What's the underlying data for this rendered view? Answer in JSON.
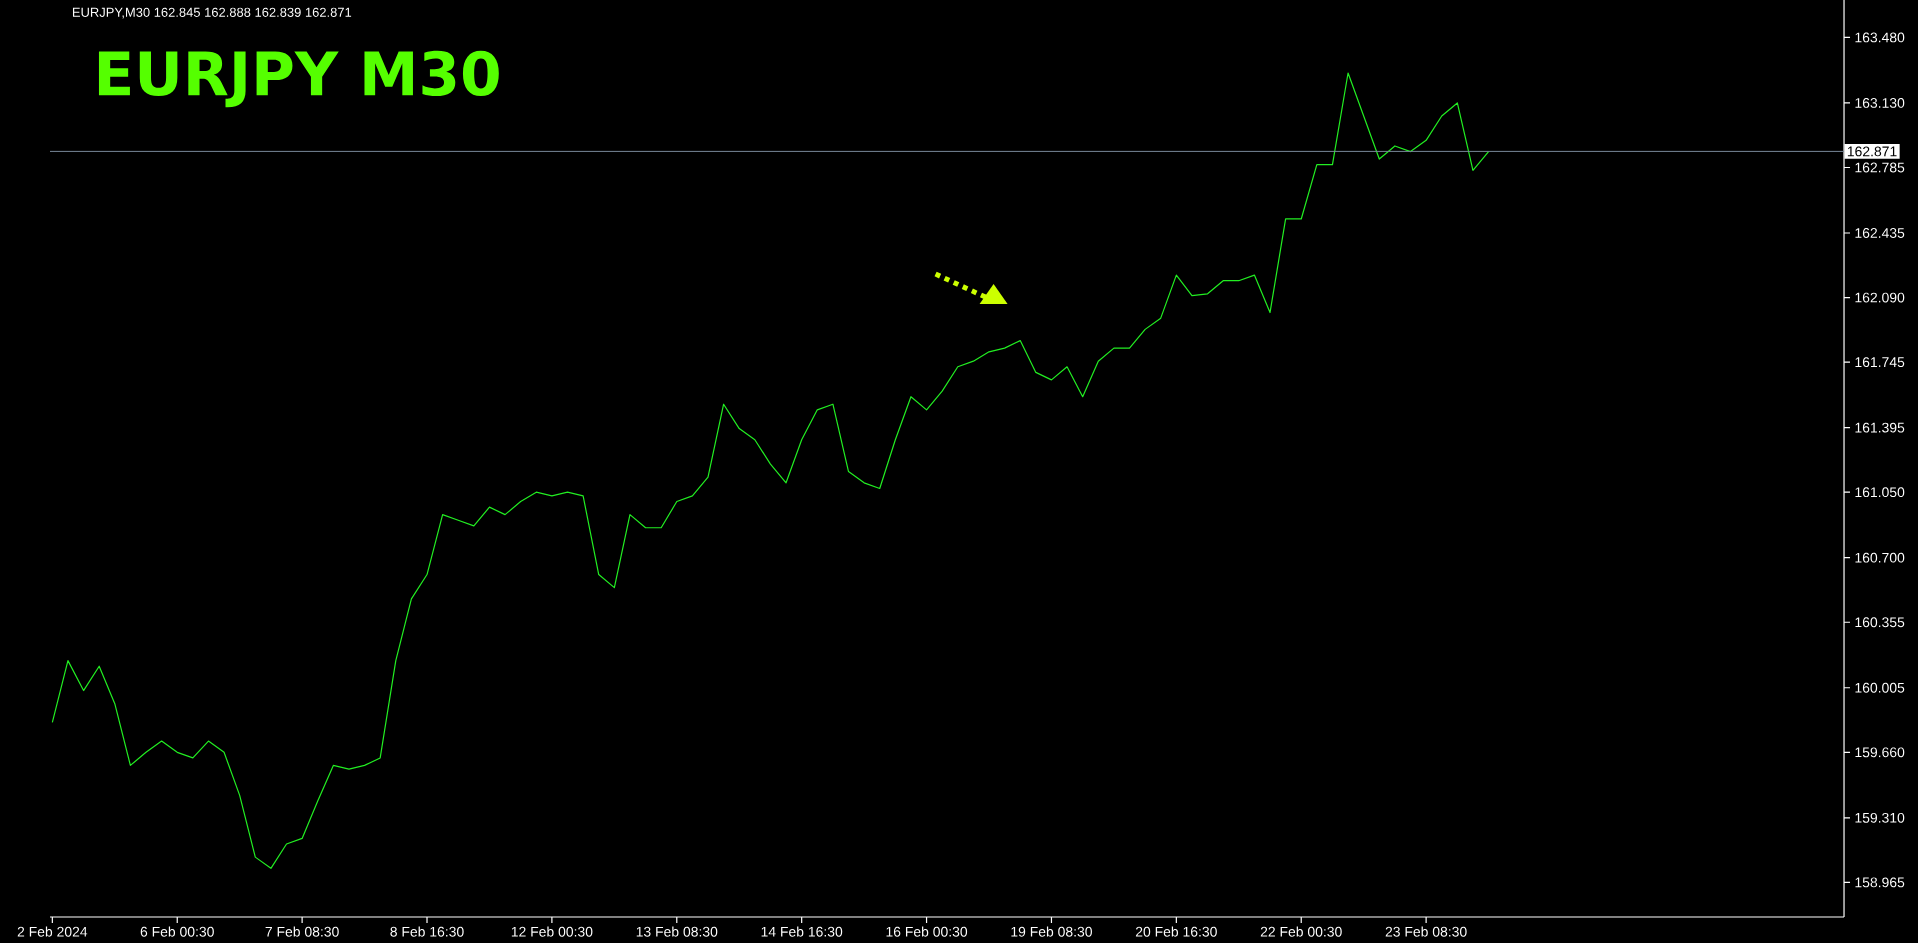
{
  "chart_data": {
    "type": "line",
    "title": "EURJPY  M30",
    "annotations": [
      "EURJPY,M30  162.845 162.888 162.839 162.871"
    ],
    "categories": [
      "2 Feb 2024",
      null,
      null,
      null,
      null,
      null,
      null,
      null,
      "6 Feb 00:30",
      null,
      null,
      null,
      null,
      null,
      null,
      null,
      "7 Feb 08:30",
      null,
      null,
      null,
      null,
      null,
      null,
      null,
      "8 Feb 16:30",
      null,
      null,
      null,
      null,
      null,
      null,
      null,
      "12 Feb 00:30",
      null,
      null,
      null,
      null,
      null,
      null,
      null,
      "13 Feb 08:30",
      null,
      null,
      null,
      null,
      null,
      null,
      null,
      "14 Feb 16:30",
      null,
      null,
      null,
      null,
      null,
      null,
      null,
      "16 Feb 00:30",
      null,
      null,
      null,
      null,
      null,
      null,
      null,
      "19 Feb 08:30",
      null,
      null,
      null,
      null,
      null,
      null,
      null,
      "20 Feb 16:30",
      null,
      null,
      null,
      null,
      null,
      null,
      null,
      "22 Feb 00:30",
      null,
      null,
      null,
      null,
      null,
      null,
      null,
      "23 Feb 08:30",
      null,
      null,
      null,
      null
    ],
    "values": [
      159.82,
      160.15,
      159.99,
      160.12,
      159.92,
      159.59,
      159.66,
      159.72,
      159.66,
      159.63,
      159.72,
      159.66,
      159.43,
      159.1,
      159.04,
      159.17,
      159.2,
      159.4,
      159.59,
      159.57,
      159.59,
      159.63,
      160.15,
      160.48,
      160.61,
      160.93,
      160.9,
      160.87,
      160.97,
      160.93,
      161.0,
      161.05,
      161.03,
      161.05,
      161.03,
      160.61,
      160.54,
      160.93,
      160.86,
      160.86,
      161.0,
      161.03,
      161.13,
      161.52,
      161.39,
      161.33,
      161.2,
      161.1,
      161.33,
      161.49,
      161.52,
      161.16,
      161.1,
      161.07,
      161.33,
      161.56,
      161.49,
      161.59,
      161.72,
      161.75,
      161.8,
      161.82,
      161.86,
      161.69,
      161.65,
      161.72,
      161.56,
      161.75,
      161.82,
      161.82,
      161.92,
      161.98,
      162.21,
      162.1,
      162.11,
      162.18,
      162.18,
      162.21,
      162.01,
      162.51,
      162.51,
      162.8,
      162.8,
      163.29,
      163.06,
      162.83,
      162.9,
      162.87,
      162.93,
      163.06,
      163.13,
      162.77,
      162.87
    ],
    "color": "#22ee22",
    "ylim": [
      158.78,
      163.68
    ],
    "yticks": [
      {
        "value": 163.48,
        "label": "163.480"
      },
      {
        "value": 163.13,
        "label": "163.130"
      },
      162.785,
      162.435,
      {
        "value": 162.09,
        "label": "162.090"
      },
      161.745,
      161.395,
      {
        "value": 161.05,
        "label": "161.050"
      },
      {
        "value": 160.7,
        "label": "160.700"
      },
      160.355,
      160.005,
      {
        "value": 159.66,
        "label": "159.660"
      },
      {
        "value": 159.31,
        "label": "159.310"
      },
      158.965
    ],
    "ref_lines": [
      {
        "axis": "y",
        "value": 162.871,
        "label": "162.871",
        "color": "#778899"
      }
    ]
  }
}
